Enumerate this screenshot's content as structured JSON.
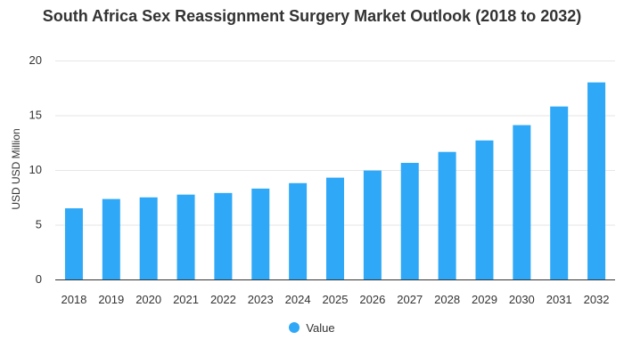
{
  "chart_data": {
    "type": "bar",
    "title": "South Africa Sex Reassignment Surgery Market Outlook (2018 to 2032)",
    "xlabel": "",
    "ylabel": "USD USD Million",
    "categories": [
      "2018",
      "2019",
      "2020",
      "2021",
      "2022",
      "2023",
      "2024",
      "2025",
      "2026",
      "2027",
      "2028",
      "2029",
      "2030",
      "2031",
      "2032"
    ],
    "series": [
      {
        "name": "Value",
        "values": [
          6.5,
          7.35,
          7.5,
          7.75,
          7.9,
          8.3,
          8.8,
          9.3,
          9.95,
          10.65,
          11.65,
          12.7,
          14.1,
          15.8,
          18.0
        ]
      }
    ],
    "ylim": [
      0,
      20
    ],
    "yticks": [
      "0",
      "5",
      "10",
      "15",
      "20"
    ],
    "grid": true,
    "legend_position": "bottom",
    "bar_color": "#2ea8f7"
  }
}
